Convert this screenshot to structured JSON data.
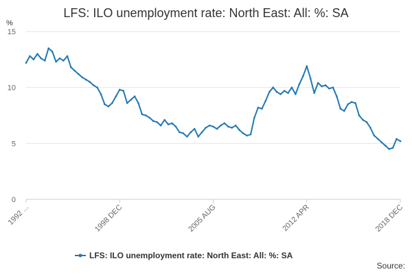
{
  "chart_data": {
    "type": "line",
    "title": "LFS: ILO unemployment rate: North East: All: %: SA",
    "ylabel": "%",
    "ylim": [
      0,
      15
    ],
    "yticks": [
      "0",
      "5",
      "10",
      "15"
    ],
    "x_tick_labels": [
      "1992 ...",
      "1998 DEC",
      "2005 AUG",
      "2012 APR",
      "2018 DEC"
    ],
    "grid": true,
    "legend_position": "bottom",
    "source_label": "Source:",
    "series": [
      {
        "name": "LFS: ILO unemployment rate: North East: All: %: SA",
        "color": "#1f77b4",
        "x_start": "1992 APR",
        "x_end": "2018 DEC",
        "values": [
          12.2,
          12.8,
          12.5,
          13.0,
          12.6,
          12.4,
          13.5,
          13.2,
          12.3,
          12.6,
          12.4,
          12.8,
          11.8,
          11.5,
          11.2,
          10.9,
          10.7,
          10.5,
          10.2,
          10.0,
          9.4,
          8.5,
          8.3,
          8.6,
          9.2,
          9.8,
          9.7,
          8.6,
          8.9,
          9.2,
          8.6,
          7.6,
          7.5,
          7.3,
          7.0,
          6.9,
          6.6,
          7.1,
          6.7,
          6.8,
          6.5,
          6.0,
          5.9,
          5.6,
          6.0,
          6.3,
          5.6,
          6.0,
          6.4,
          6.6,
          6.5,
          6.3,
          6.6,
          6.8,
          6.5,
          6.4,
          6.6,
          6.2,
          5.9,
          5.7,
          5.8,
          7.3,
          8.2,
          8.1,
          8.8,
          9.6,
          10.0,
          9.6,
          9.4,
          9.7,
          9.5,
          10.0,
          9.4,
          10.3,
          11.0,
          11.9,
          10.8,
          9.5,
          10.4,
          10.1,
          10.2,
          9.9,
          10.0,
          9.2,
          8.1,
          7.9,
          8.5,
          8.7,
          8.6,
          7.5,
          7.1,
          6.9,
          6.4,
          5.7,
          5.4,
          5.1,
          4.8,
          4.5,
          4.6,
          5.4,
          5.2
        ]
      }
    ]
  }
}
